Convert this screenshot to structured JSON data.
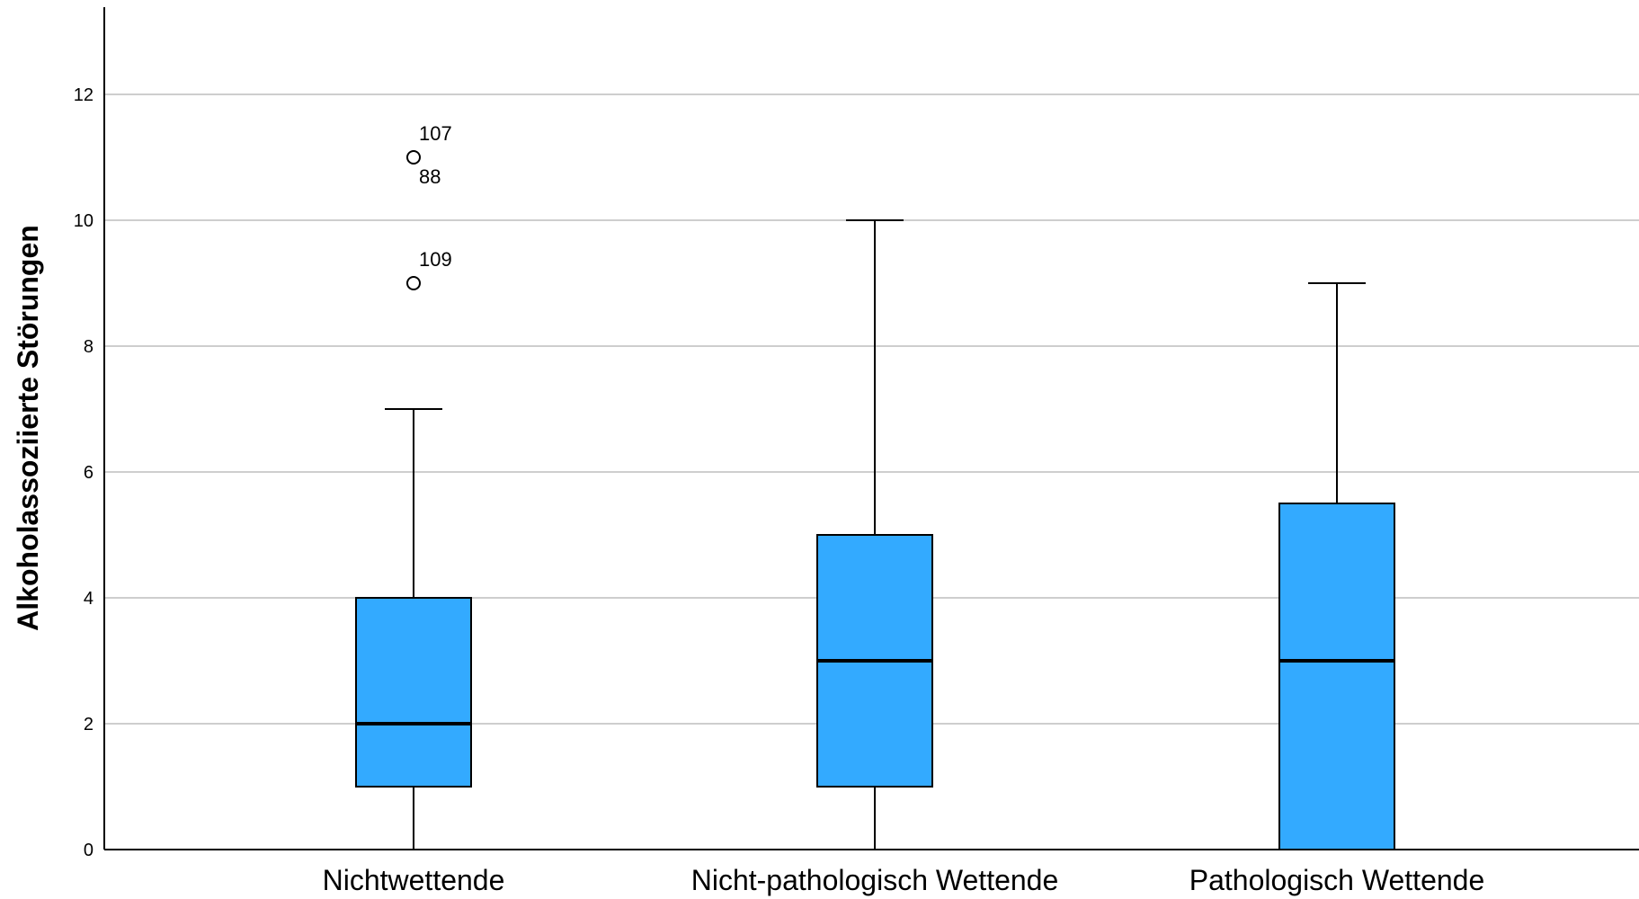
{
  "chart_data": {
    "type": "boxplot",
    "title": "",
    "xlabel": "",
    "ylabel": "Alkoholassoziierte Störungen",
    "ylim": [
      0,
      13.4
    ],
    "yticks": [
      0,
      2,
      4,
      6,
      8,
      10,
      12
    ],
    "grid": true,
    "box_color": "#33aaff",
    "categories": [
      "Nichtwettende",
      "Nicht-pathologisch Wettende",
      "Pathologisch Wettende"
    ],
    "boxes": [
      {
        "category": "Nichtwettende",
        "whisker_low": 0,
        "q1": 1,
        "median": 2,
        "q3": 4,
        "whisker_high": 7,
        "outliers": [
          {
            "value": 11,
            "labels": [
              "107",
              "88"
            ]
          },
          {
            "value": 9,
            "labels": [
              "109"
            ]
          }
        ]
      },
      {
        "category": "Nicht-pathologisch Wettende",
        "whisker_low": 0,
        "q1": 1,
        "median": 3,
        "q3": 5,
        "whisker_high": 10,
        "outliers": []
      },
      {
        "category": "Pathologisch Wettende",
        "whisker_low": 0,
        "q1": 0,
        "median": 3,
        "q3": 5.5,
        "whisker_high": 9,
        "outliers": []
      }
    ]
  }
}
